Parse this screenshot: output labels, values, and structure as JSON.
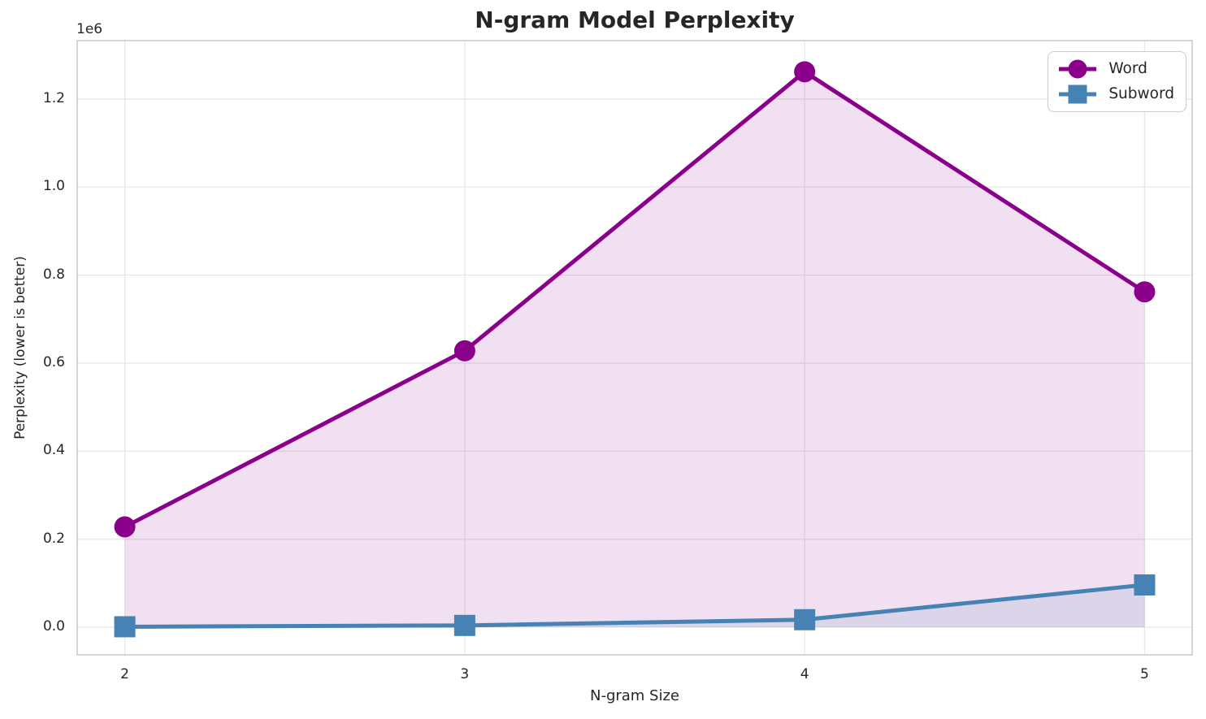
{
  "chart_data": {
    "type": "line",
    "title": "N-gram Model Perplexity",
    "xlabel": "N-gram Size",
    "ylabel": "Perplexity (lower is better)",
    "y_offset_label": "1e6",
    "x": [
      2,
      3,
      4,
      5
    ],
    "series": [
      {
        "name": "Word",
        "color": "#8B008B",
        "marker": "circle",
        "values": [
          228000,
          628000,
          1262000,
          762000
        ]
      },
      {
        "name": "Subword",
        "color": "#4682B4",
        "marker": "square",
        "values": [
          1000,
          4000,
          17000,
          96000
        ]
      }
    ],
    "fill_to_zero": true,
    "fill_opacity": 0.12,
    "line_width": 5,
    "marker_size": 26,
    "xticks": {
      "values": [
        2,
        3,
        4,
        5
      ],
      "labels": [
        "2",
        "3",
        "4",
        "5"
      ]
    },
    "yticks": {
      "values": [
        0,
        200000,
        400000,
        600000,
        800000,
        1000000,
        1200000
      ],
      "labels": [
        "0.0",
        "0.2",
        "0.4",
        "0.6",
        "0.8",
        "1.0",
        "1.2"
      ]
    },
    "xlim": [
      1.86,
      5.14
    ],
    "ylim": [
      -62800,
      1332800
    ],
    "grid": true,
    "legend": {
      "position": "upper right",
      "entries": [
        "Word",
        "Subword"
      ]
    },
    "colors": {
      "text": "#262626",
      "grid": "#E7E7E7",
      "spine": "#CBCBCB",
      "background": "#FFFFFF"
    }
  }
}
